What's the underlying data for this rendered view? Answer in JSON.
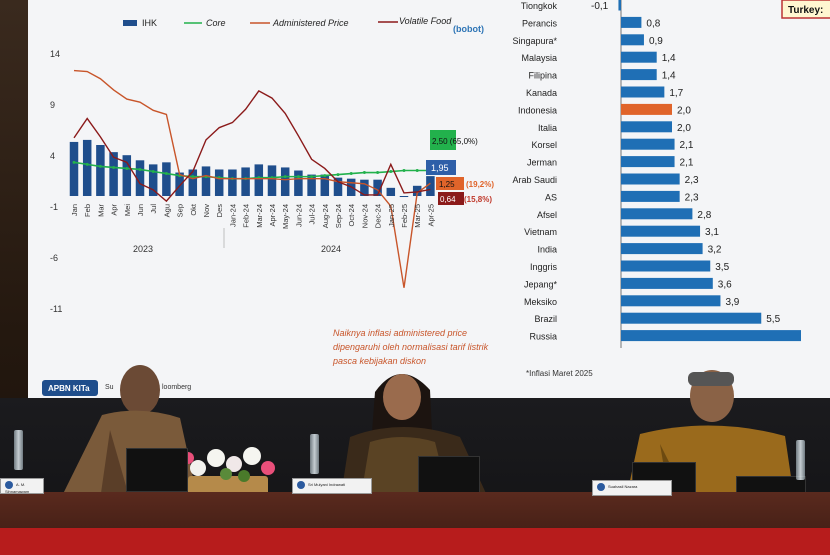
{
  "slide": {
    "legend": [
      "IHK",
      "Core",
      "Administered Price",
      "Volatile Food",
      "(bobot)"
    ],
    "y_ticks": [
      "14",
      "9",
      "4",
      "-1",
      "-6",
      "-11"
    ],
    "x_labels": [
      "Jan",
      "Feb",
      "Mar",
      "Apr",
      "Mei",
      "Jun",
      "Jul",
      "Agu",
      "Sep",
      "Okt",
      "Nov",
      "Des",
      "Jan-24",
      "Feb-24",
      "Mar-24",
      "Apr-24",
      "May-24",
      "Jun-24",
      "Jul-24",
      "Aug-24",
      "Sep-24",
      "Oct-24",
      "Nov-24",
      "Dec-24",
      "Jan-25",
      "Feb-25",
      "Mar-25",
      "Apr-25"
    ],
    "year_labels": [
      "2023",
      "2024"
    ],
    "callouts": {
      "core": "2,50 (65,0%)",
      "ihk": "1,95",
      "admin": "1,25",
      "admin_weight": "(19,2%)",
      "food": "0,64",
      "food_weight": "(15,8%)"
    },
    "annotation": "Naiknya inflasi administered price dipengaruhi oleh normalisasi tarif listrik pasca kebijakan diskon",
    "source_partial": "Su",
    "source_partial2": "loomberg",
    "badge": "APBN KITa",
    "footnote": "*Inflasi Maret 2025",
    "corner_label": "Turkey:",
    "countries": [
      "Tiongkok",
      "Perancis",
      "Singapura*",
      "Malaysia",
      "Filipina",
      "Kanada",
      "Indonesia",
      "Italia",
      "Korsel",
      "Jerman",
      "Arab Saudi",
      "AS",
      "Afsel",
      "Vietnam",
      "India",
      "Inggris",
      "Jepang*",
      "Meksiko",
      "Brazil",
      "Russia"
    ],
    "country_values": [
      "-0,1",
      "0,8",
      "0,9",
      "1,4",
      "1,4",
      "1,7",
      "2,0",
      "2,0",
      "2,1",
      "2,1",
      "2,3",
      "2,3",
      "2,8",
      "3,1",
      "3,2",
      "3,5",
      "3,6",
      "3,9",
      "5,5",
      ""
    ],
    "colors": {
      "ihk": "#1f4e8c",
      "core": "#22b14c",
      "admin": "#c8552a",
      "food": "#8b1a1a",
      "bar": "#1f6fb5",
      "highlight": "#e0642a"
    }
  },
  "chart_data": [
    {
      "type": "bar",
      "title": "",
      "x": [
        "Jan",
        "Feb",
        "Mar",
        "Apr",
        "Mei",
        "Jun",
        "Jul",
        "Agu",
        "Sep",
        "Okt",
        "Nov",
        "Des",
        "Jan-24",
        "Feb-24",
        "Mar-24",
        "Apr-24",
        "May-24",
        "Jun-24",
        "Jul-24",
        "Aug-24",
        "Sep-24",
        "Oct-24",
        "Nov-24",
        "Dec-24",
        "Jan-25",
        "Feb-25",
        "Mar-25",
        "Apr-25"
      ],
      "ylim": [
        -11,
        14
      ],
      "series": [
        {
          "name": "IHK",
          "values": [
            5.3,
            5.5,
            5.0,
            4.3,
            4.0,
            3.5,
            3.1,
            3.3,
            2.3,
            2.6,
            2.9,
            2.6,
            2.6,
            2.8,
            3.1,
            3.0,
            2.8,
            2.5,
            2.1,
            2.1,
            1.8,
            1.7,
            1.6,
            1.6,
            0.8,
            -0.1,
            1.0,
            1.95
          ]
        },
        {
          "name": "Core",
          "values": [
            3.3,
            3.1,
            2.9,
            2.8,
            2.7,
            2.6,
            2.4,
            2.2,
            2.0,
            1.9,
            1.9,
            1.8,
            1.7,
            1.7,
            1.8,
            1.8,
            1.9,
            1.9,
            1.9,
            2.0,
            2.1,
            2.2,
            2.3,
            2.3,
            2.4,
            2.5,
            2.5,
            2.5
          ]
        },
        {
          "name": "Administered Price",
          "values": [
            12.3,
            12.2,
            11.5,
            10.4,
            9.5,
            9.2,
            8.4,
            8.0,
            2.1,
            1.7,
            2.0,
            1.7,
            1.7,
            1.7,
            1.7,
            1.7,
            1.6,
            1.7,
            1.7,
            1.7,
            1.4,
            1.3,
            1.2,
            0.6,
            -1.0,
            -9.0,
            0.3,
            1.25
          ]
        },
        {
          "name": "Volatile Food",
          "values": [
            5.7,
            7.6,
            5.8,
            3.8,
            3.3,
            1.2,
            0.6,
            -0.5,
            1.0,
            2.4,
            5.5,
            6.7,
            7.2,
            8.5,
            10.3,
            9.6,
            8.1,
            5.9,
            3.6,
            2.7,
            1.4,
            0.9,
            0.1,
            0.1,
            3.1,
            0.3,
            0.4,
            0.64
          ]
        }
      ]
    },
    {
      "type": "bar",
      "title": "",
      "categories": [
        "Tiongkok",
        "Perancis",
        "Singapura*",
        "Malaysia",
        "Filipina",
        "Kanada",
        "Indonesia",
        "Italia",
        "Korsel",
        "Jerman",
        "Arab Saudi",
        "AS",
        "Afsel",
        "Vietnam",
        "India",
        "Inggris",
        "Jepang*",
        "Meksiko",
        "Brazil",
        "Russia"
      ],
      "values": [
        -0.1,
        0.8,
        0.9,
        1.4,
        1.4,
        1.7,
        2.0,
        2.0,
        2.1,
        2.1,
        2.3,
        2.3,
        2.8,
        3.1,
        3.2,
        3.5,
        3.6,
        3.9,
        5.5,
        null
      ]
    }
  ],
  "scene": {
    "nameplates": [
      "A. M. Sihnamawam",
      "Sri Mulyani Indrawati",
      "Suahasil Nazara"
    ]
  }
}
